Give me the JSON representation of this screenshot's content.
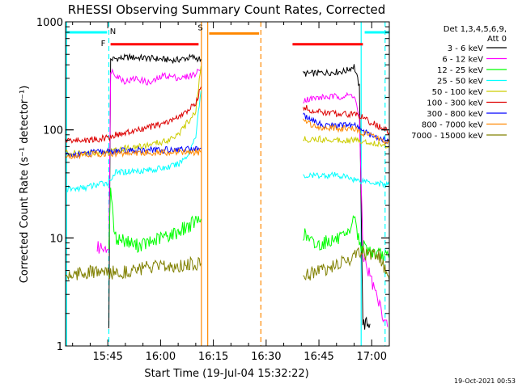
{
  "chart_data": {
    "type": "line",
    "title": "RHESSI Observing Summary Count Rates, Corrected",
    "xlabel": "Start Time (19-Jul-04 15:32:22)",
    "ylabel": "Corrected Count Rate (s⁻¹ detector⁻¹)",
    "yscale": "log",
    "ylim": [
      1,
      1000
    ],
    "xlim_minutes_since_1530": [
      3.0,
      95.0
    ],
    "xticks": [
      {
        "label": "15:45",
        "minute": 15
      },
      {
        "label": "16:00",
        "minute": 30
      },
      {
        "label": "16:15",
        "minute": 45
      },
      {
        "label": "16:30",
        "minute": 60
      },
      {
        "label": "16:45",
        "minute": 75
      },
      {
        "label": "17:00",
        "minute": 90
      }
    ],
    "yticks": [
      {
        "label": "1",
        "value": 1
      },
      {
        "label": "10",
        "value": 10
      },
      {
        "label": "100",
        "value": 100
      },
      {
        "label": "1000",
        "value": 1000
      }
    ],
    "legend": {
      "header": [
        "Det 1,3,4,5,6,9,",
        "Att 0"
      ],
      "placement": "top-right"
    },
    "series": [
      {
        "name": "3 - 6 keV",
        "color": "#000000",
        "points": [
          [
            15.3,
            1.6
          ],
          [
            15.8,
            450
          ],
          [
            21,
            470
          ],
          [
            27,
            460
          ],
          [
            34,
            440
          ],
          [
            39,
            470
          ],
          [
            41.5,
            450
          ],
          [
            58,
            null
          ],
          [
            70.5,
            330
          ],
          [
            74,
            335
          ],
          [
            78,
            340
          ],
          [
            82.5,
            350
          ],
          [
            85,
            390
          ],
          [
            86.5,
            250
          ],
          [
            87.5,
            1.6
          ],
          [
            89.5,
            1.6
          ]
        ]
      },
      {
        "name": "6 - 12 keV",
        "color": "#ff00ff",
        "points": [
          [
            12,
            8
          ],
          [
            14.8,
            8.5
          ],
          [
            15.3,
            7
          ],
          [
            15.8,
            360
          ],
          [
            18,
            310
          ],
          [
            20,
            280
          ],
          [
            23,
            300
          ],
          [
            27,
            270
          ],
          [
            31,
            320
          ],
          [
            36,
            300
          ],
          [
            40,
            330
          ],
          [
            41.5,
            370
          ],
          [
            58,
            null
          ],
          [
            70.5,
            190
          ],
          [
            76,
            200
          ],
          [
            82,
            205
          ],
          [
            85,
            210
          ],
          [
            86.5,
            130
          ],
          [
            87.5,
            7
          ],
          [
            90,
            4
          ],
          [
            92,
            2.5
          ],
          [
            94.5,
            1.5
          ]
        ]
      },
      {
        "name": "12 - 25 keV",
        "color": "#00ff00",
        "points": [
          [
            15.3,
            9
          ],
          [
            15.8,
            30
          ],
          [
            17,
            10
          ],
          [
            20,
            9.5
          ],
          [
            23,
            8.5
          ],
          [
            27,
            9
          ],
          [
            30,
            10
          ],
          [
            34,
            11
          ],
          [
            38,
            13
          ],
          [
            41.5,
            15
          ],
          [
            58,
            null
          ],
          [
            70.5,
            11
          ],
          [
            74,
            8.5
          ],
          [
            78,
            9.5
          ],
          [
            83,
            10
          ],
          [
            85,
            16
          ],
          [
            86.5,
            9
          ],
          [
            88,
            8
          ],
          [
            92,
            7
          ],
          [
            95,
            6.5
          ]
        ]
      },
      {
        "name": "25 - 50 keV",
        "color": "#00ffff",
        "points": [
          [
            3.1,
            28
          ],
          [
            8,
            29
          ],
          [
            12,
            31
          ],
          [
            15.3,
            33
          ],
          [
            17,
            40
          ],
          [
            20,
            41
          ],
          [
            24,
            42
          ],
          [
            28,
            43
          ],
          [
            32,
            45
          ],
          [
            35,
            48
          ],
          [
            38,
            60
          ],
          [
            40,
            90
          ],
          [
            41.5,
            230
          ],
          [
            58,
            null
          ],
          [
            70.5,
            37
          ],
          [
            75,
            38
          ],
          [
            80,
            38
          ],
          [
            84,
            36
          ],
          [
            86,
            34
          ],
          [
            88,
            34
          ],
          [
            92,
            32
          ],
          [
            95,
            31
          ]
        ]
      },
      {
        "name": "50 - 100 keV",
        "color": "#cccc00",
        "points": [
          [
            3.1,
            62
          ],
          [
            8,
            60
          ],
          [
            12,
            62
          ],
          [
            15.3,
            63
          ],
          [
            17,
            66
          ],
          [
            20,
            68
          ],
          [
            24,
            70
          ],
          [
            28,
            74
          ],
          [
            32,
            80
          ],
          [
            36,
            98
          ],
          [
            40,
            150
          ],
          [
            41.5,
            390
          ],
          [
            58,
            null
          ],
          [
            70.5,
            82
          ],
          [
            75,
            82
          ],
          [
            80,
            81
          ],
          [
            84,
            81
          ],
          [
            86,
            80
          ],
          [
            88,
            78
          ],
          [
            92,
            74
          ],
          [
            95,
            70
          ]
        ]
      },
      {
        "name": "100 - 300 keV",
        "color": "#dd0000",
        "points": [
          [
            3.1,
            80
          ],
          [
            8,
            80
          ],
          [
            12,
            82
          ],
          [
            15.3,
            85
          ],
          [
            17,
            90
          ],
          [
            20,
            93
          ],
          [
            24,
            100
          ],
          [
            28,
            108
          ],
          [
            32,
            118
          ],
          [
            36,
            135
          ],
          [
            40,
            175
          ],
          [
            41.5,
            250
          ],
          [
            58,
            null
          ],
          [
            70.5,
            165
          ],
          [
            73,
            150
          ],
          [
            76,
            145
          ],
          [
            80,
            142
          ],
          [
            84,
            140
          ],
          [
            86,
            140
          ],
          [
            88,
            125
          ],
          [
            92,
            108
          ],
          [
            95,
            95
          ]
        ]
      },
      {
        "name": "300 - 800 keV",
        "color": "#0000ff",
        "points": [
          [
            3.1,
            58
          ],
          [
            8,
            60
          ],
          [
            12,
            62
          ],
          [
            15.3,
            63
          ],
          [
            20,
            64
          ],
          [
            25,
            65
          ],
          [
            30,
            65
          ],
          [
            35,
            66
          ],
          [
            40,
            67
          ],
          [
            41.5,
            68
          ],
          [
            58,
            null
          ],
          [
            70.5,
            140
          ],
          [
            73,
            120
          ],
          [
            76,
            112
          ],
          [
            80,
            110
          ],
          [
            84,
            110
          ],
          [
            86,
            108
          ],
          [
            88,
            95
          ],
          [
            92,
            85
          ],
          [
            95,
            78
          ]
        ]
      },
      {
        "name": "800 - 7000 keV",
        "color": "#ff8800",
        "points": [
          [
            3.1,
            57
          ],
          [
            8,
            59
          ],
          [
            12,
            60
          ],
          [
            15.3,
            60
          ],
          [
            20,
            61
          ],
          [
            25,
            61
          ],
          [
            30,
            62
          ],
          [
            35,
            62
          ],
          [
            40,
            62
          ],
          [
            41.5,
            62
          ],
          [
            58,
            null
          ],
          [
            70.5,
            125
          ],
          [
            73,
            112
          ],
          [
            76,
            105
          ],
          [
            80,
            103
          ],
          [
            84,
            102
          ],
          [
            86,
            100
          ],
          [
            88,
            92
          ],
          [
            92,
            83
          ],
          [
            95,
            76
          ]
        ]
      },
      {
        "name": "7000 - 15000 keV",
        "color": "#808000",
        "points": [
          [
            3.1,
            4.5
          ],
          [
            8,
            4.8
          ],
          [
            12,
            4.8
          ],
          [
            15.3,
            4.7
          ],
          [
            17,
            4.8
          ],
          [
            20,
            4.9
          ],
          [
            24,
            5.2
          ],
          [
            28,
            5.3
          ],
          [
            32,
            5.4
          ],
          [
            36,
            5.6
          ],
          [
            40,
            5.8
          ],
          [
            41.5,
            5.8
          ],
          [
            58,
            null
          ],
          [
            70.5,
            4.5
          ],
          [
            75,
            5
          ],
          [
            80,
            5.5
          ],
          [
            84,
            6.5
          ],
          [
            86,
            7.5
          ],
          [
            88,
            7.2
          ],
          [
            92,
            6.8
          ],
          [
            95,
            4
          ]
        ]
      }
    ],
    "annotations": {
      "vlines": [
        {
          "minute": 3.3,
          "color": "#00ffff",
          "style": "solid"
        },
        {
          "minute": 15.3,
          "color": "#00ffff",
          "style": "dashed"
        },
        {
          "minute": 41.6,
          "color": "#ff8800",
          "style": "solid"
        },
        {
          "minute": 43.4,
          "color": "#ff8800",
          "style": "solid"
        },
        {
          "minute": 58.5,
          "color": "#ff8800",
          "style": "dashed"
        },
        {
          "minute": 87.0,
          "color": "#00ffff",
          "style": "solid"
        },
        {
          "minute": 93.8,
          "color": "#00ffff",
          "style": "dashed"
        }
      ],
      "bars": [
        {
          "label": "N",
          "color": "#00ffff",
          "start": 3.1,
          "end": 14.8,
          "value": 800
        },
        {
          "label": "F",
          "color": "#ff0000",
          "start": 15.8,
          "end": 40.8,
          "value": 620
        },
        {
          "label": "S",
          "color": "#ff8800",
          "start": 43.8,
          "end": 58.0,
          "value": 780
        },
        {
          "label": "",
          "color": "#ff0000",
          "start": 67.5,
          "end": 87.5,
          "value": 620
        },
        {
          "label": "",
          "color": "#00ffff",
          "start": 88.0,
          "end": 95.0,
          "value": 800
        }
      ]
    },
    "footer_date": "19-Oct-2021 00:53"
  }
}
